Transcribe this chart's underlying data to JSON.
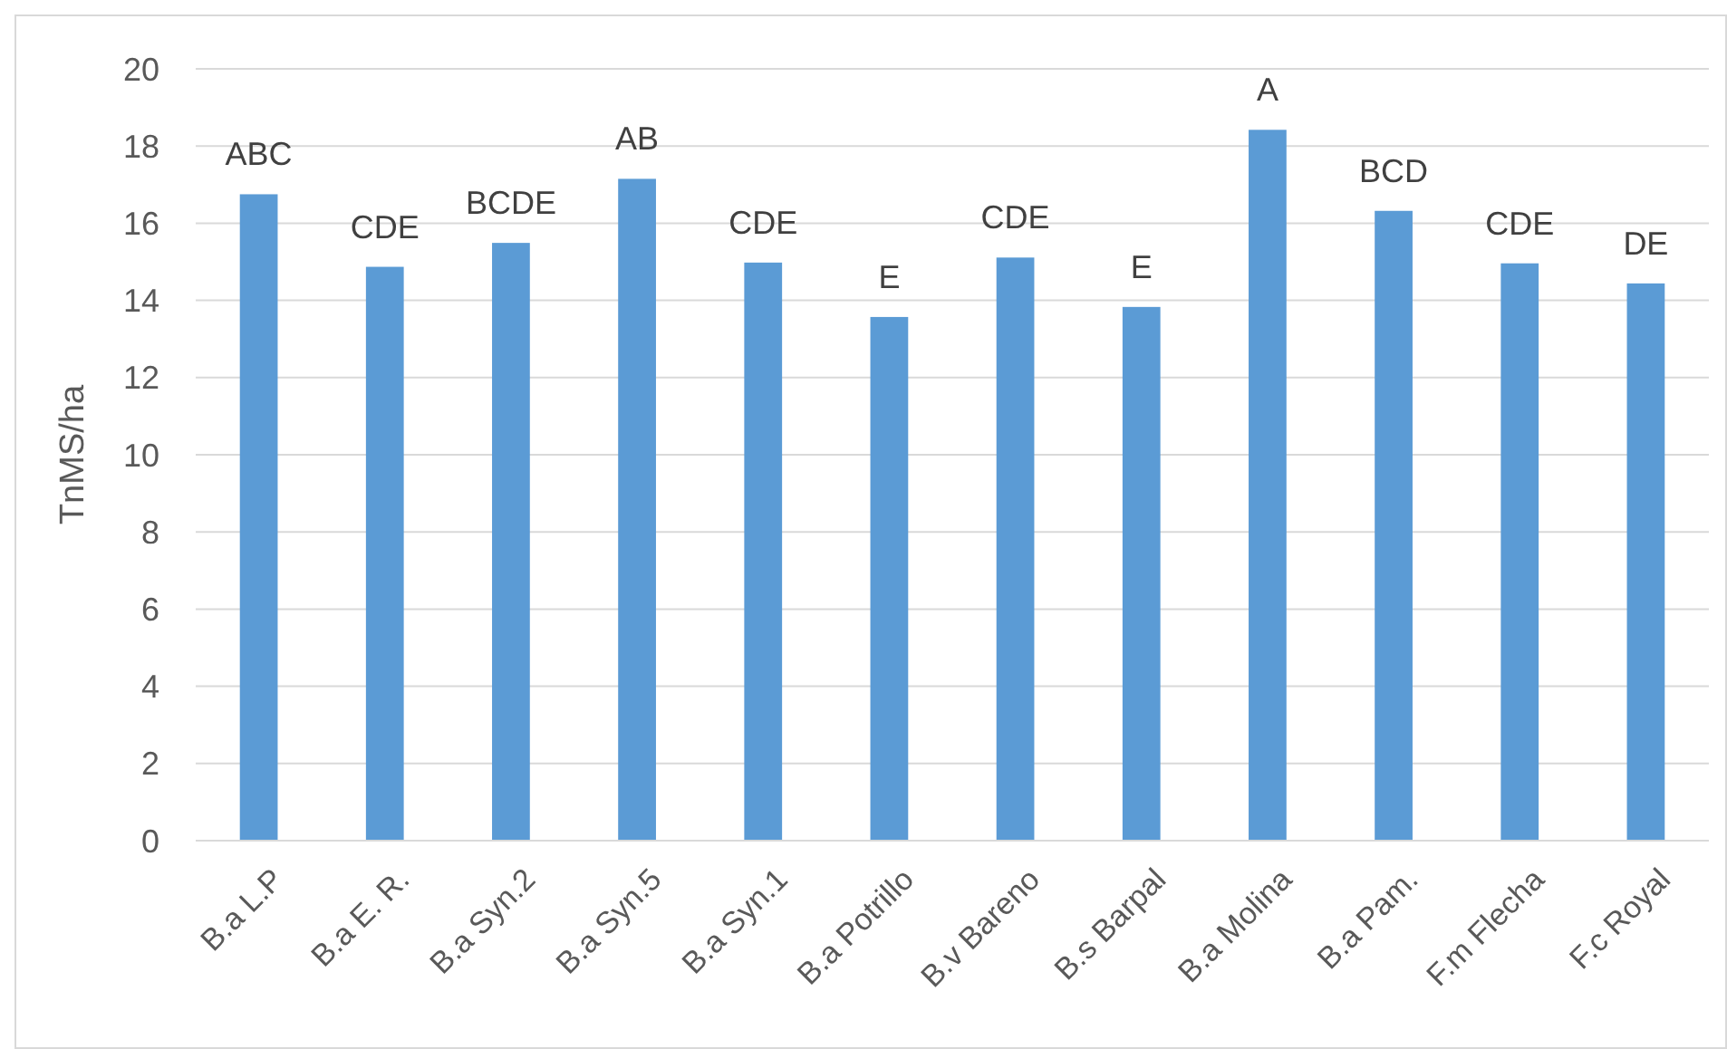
{
  "chart_data": {
    "type": "bar",
    "ylabel": "TnMS/ha",
    "categories": [
      "B.a L.P",
      "B.a E. R.",
      "B.a Syn.2",
      "B.a Syn.5",
      "B.a Syn.1",
      "B.a Potrillo",
      "B.v Bareno",
      "B.s Barpal",
      "B.a Molina",
      "B.a Pam.",
      "F.m Flecha",
      "F.c Royal"
    ],
    "values": [
      16.75,
      14.87,
      15.49,
      17.15,
      14.98,
      13.57,
      15.11,
      13.83,
      18.42,
      16.32,
      14.96,
      14.44
    ],
    "color": "#5b9bd5",
    "ylim": [
      0,
      20
    ],
    "yticks": [
      0,
      2,
      4,
      6,
      8,
      10,
      12,
      14,
      16,
      18,
      20
    ],
    "grid": "y",
    "annotations": [
      {
        "text": "ABC",
        "x": "B.a L.P",
        "y": 16.75
      },
      {
        "text": "CDE",
        "x": "B.a E. R.",
        "y": 14.87
      },
      {
        "text": "BCDE",
        "x": "B.a Syn.2",
        "y": 15.49
      },
      {
        "text": "AB",
        "x": "B.a Syn.5",
        "y": 17.15
      },
      {
        "text": "CDE",
        "x": "B.a Syn.1",
        "y": 14.98
      },
      {
        "text": "E",
        "x": "B.a Potrillo",
        "y": 13.57
      },
      {
        "text": "CDE",
        "x": "B.v Bareno",
        "y": 15.11
      },
      {
        "text": "E",
        "x": "B.s Barpal",
        "y": 13.83
      },
      {
        "text": "A",
        "x": "B.a Molina",
        "y": 18.42
      },
      {
        "text": "BCD",
        "x": "B.a Pam.",
        "y": 16.32
      },
      {
        "text": "CDE",
        "x": "F.m Flecha",
        "y": 14.96
      },
      {
        "text": "DE",
        "x": "F.c Royal",
        "y": 14.44
      }
    ]
  }
}
